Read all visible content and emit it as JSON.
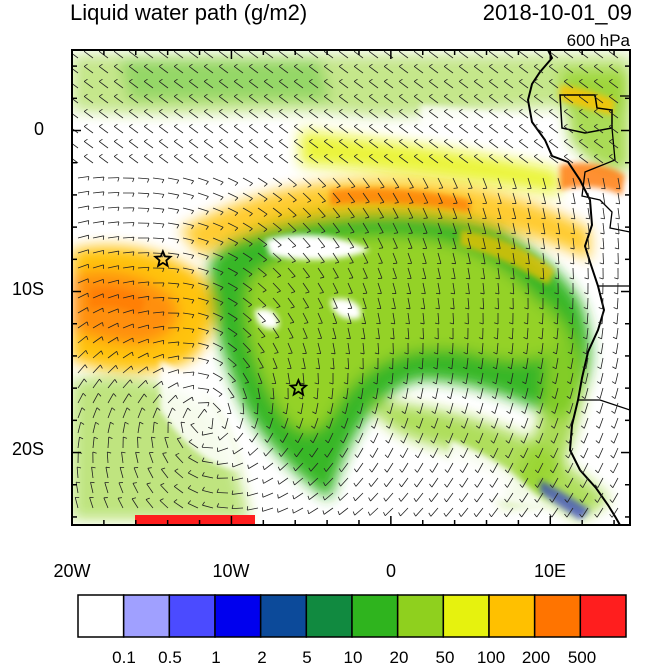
{
  "title": "Liquid water path (g/m2)",
  "datetime": "2018-10-01_09",
  "level": "600 hPa",
  "axes": {
    "lat_ticks": [
      {
        "value": 0,
        "label": "0"
      },
      {
        "value": -10,
        "label": "10S"
      },
      {
        "value": -20,
        "label": "20S"
      }
    ],
    "lon_ticks": [
      {
        "value": -20,
        "label": "20W"
      },
      {
        "value": -10,
        "label": "10W"
      },
      {
        "value": 0,
        "label": "0"
      },
      {
        "value": 10,
        "label": "10E"
      }
    ],
    "lon_range": [
      -20,
      15
    ],
    "lat_range": [
      -24.5,
      5
    ]
  },
  "markers": [
    {
      "name": "star-1",
      "lon": -14.3,
      "lat": -8.0
    },
    {
      "name": "star-2",
      "lon": -5.8,
      "lat": -16.0
    }
  ],
  "colorbar": {
    "colors": [
      "#ffffff",
      "#a0a0ff",
      "#4b4bff",
      "#0000ee",
      "#0c4a9a",
      "#118a40",
      "#2fb41e",
      "#8fd01e",
      "#e6f20e",
      "#ffc000",
      "#ff7400",
      "#ff1e1e"
    ],
    "labels": [
      "0.1",
      "0.5",
      "1",
      "2",
      "5",
      "10",
      "20",
      "50",
      "100",
      "200",
      "500"
    ]
  }
}
